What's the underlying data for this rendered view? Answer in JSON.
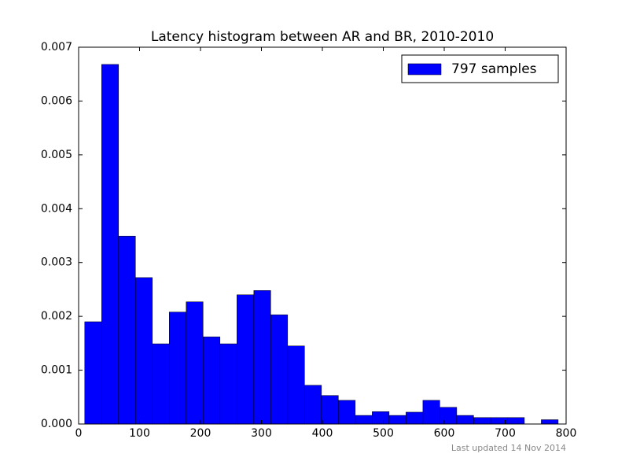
{
  "chart_data": {
    "type": "histogram",
    "title": "Latency histogram between AR and BR, 2010-2010",
    "footnote": "Last updated 14 Nov 2014",
    "bins": [
      10,
      37.75,
      65.5,
      93.25,
      121,
      148.75,
      176.5,
      204.25,
      232,
      259.75,
      287.5,
      315.25,
      343,
      370.75,
      398.5,
      426.25,
      454,
      481.75,
      509.5,
      537.25,
      565,
      592.75,
      620.5,
      648.25,
      676,
      703.75,
      731.5,
      759.25,
      787
    ],
    "series": [
      {
        "name": "797 samples",
        "color": "#0000ff",
        "values": [
          0.0019,
          0.00668,
          0.00349,
          0.00272,
          0.00149,
          0.00208,
          0.00227,
          0.00162,
          0.00149,
          0.0024,
          0.00248,
          0.00203,
          0.00145,
          0.00072,
          0.00053,
          0.00044,
          0.00016,
          0.00023,
          0.00016,
          0.00022,
          0.00044,
          0.00031,
          0.00016,
          0.00012,
          0.00012,
          0.00012,
          0,
          8e-05
        ]
      }
    ],
    "xlim": [
      0,
      800
    ],
    "xticks": [
      0,
      100,
      200,
      300,
      400,
      500,
      600,
      700,
      800
    ],
    "ylim": [
      0,
      0.007
    ],
    "yticks": [
      {
        "value": 0,
        "label": "0.000"
      },
      {
        "value": 0.001,
        "label": "0.001"
      },
      {
        "value": 0.002,
        "label": "0.002"
      },
      {
        "value": 0.003,
        "label": "0.003"
      },
      {
        "value": 0.004,
        "label": "0.004"
      },
      {
        "value": 0.005,
        "label": "0.005"
      },
      {
        "value": 0.006,
        "label": "0.006"
      },
      {
        "value": 0.007,
        "label": "0.007"
      }
    ],
    "legend": "upper right"
  }
}
